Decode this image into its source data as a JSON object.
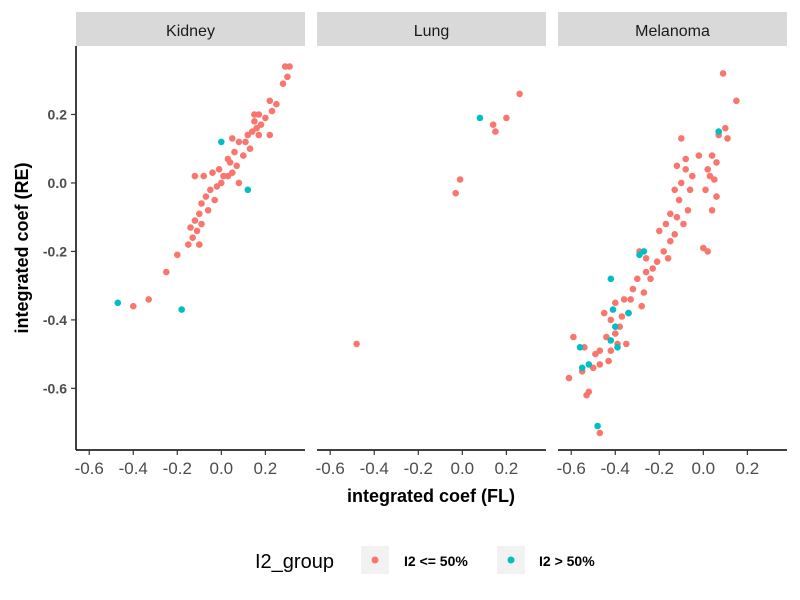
{
  "chart_data": {
    "type": "scatter",
    "xlabel": "integrated coef (FL)",
    "ylabel": "integrated coef (RE)",
    "xlim": [
      -0.66,
      0.38
    ],
    "ylim": [
      -0.78,
      0.4
    ],
    "x_ticks": [
      "-0.6",
      "-0.4",
      "-0.2",
      "0.0",
      "0.2"
    ],
    "x_tick_values": [
      -0.6,
      -0.4,
      -0.2,
      0.0,
      0.2
    ],
    "y_ticks": [
      "-0.6",
      "-0.4",
      "-0.2",
      "0.0",
      "0.2"
    ],
    "y_tick_values": [
      -0.6,
      -0.4,
      -0.2,
      0.0,
      0.2
    ],
    "grid": false,
    "legend_position": "bottom",
    "legend": {
      "title": "I2_group",
      "entries": [
        {
          "key": "low",
          "label": "I2 <= 50%",
          "color": "#F8766D"
        },
        {
          "key": "high",
          "label": "I2 > 50%",
          "color": "#00BFC4"
        }
      ]
    },
    "facets": [
      {
        "label": "Kidney",
        "points": [
          [
            0.29,
            0.34
          ],
          [
            0.31,
            0.34
          ],
          [
            0.3,
            0.31
          ],
          [
            0.28,
            0.29
          ],
          [
            0.22,
            0.24
          ],
          [
            0.25,
            0.23
          ],
          [
            0.23,
            0.21
          ],
          [
            0.17,
            0.2
          ],
          [
            0.15,
            0.2
          ],
          [
            0.2,
            0.19
          ],
          [
            0.18,
            0.17
          ],
          [
            0.16,
            0.16
          ],
          [
            0.14,
            0.15
          ],
          [
            0.12,
            0.14
          ],
          [
            0.17,
            0.14
          ],
          [
            0.22,
            0.14
          ],
          [
            0.11,
            0.12
          ],
          [
            0.08,
            0.12
          ],
          [
            0.05,
            0.13
          ],
          [
            0.13,
            0.1
          ],
          [
            0.1,
            0.08
          ],
          [
            0.06,
            0.09
          ],
          [
            0.03,
            0.07
          ],
          [
            0.07,
            0.05
          ],
          [
            0.05,
            0.03
          ],
          [
            0.03,
            0.02
          ],
          [
            0.01,
            0.02
          ],
          [
            0.0,
            0.0
          ],
          [
            -0.02,
            -0.01
          ],
          [
            -0.04,
            0.03
          ],
          [
            -0.08,
            0.02
          ],
          [
            -0.12,
            0.02
          ],
          [
            -0.05,
            -0.02
          ],
          [
            -0.07,
            -0.04
          ],
          [
            -0.09,
            -0.06
          ],
          [
            -0.03,
            -0.05
          ],
          [
            -0.06,
            -0.08
          ],
          [
            -0.1,
            -0.09
          ],
          [
            -0.12,
            -0.11
          ],
          [
            -0.14,
            -0.13
          ],
          [
            -0.11,
            -0.14
          ],
          [
            -0.13,
            -0.16
          ],
          [
            -0.09,
            -0.12
          ],
          [
            -0.15,
            -0.18
          ],
          [
            -0.1,
            -0.18
          ],
          [
            -0.2,
            -0.21
          ],
          [
            -0.25,
            -0.26
          ],
          [
            -0.33,
            -0.34
          ],
          [
            -0.4,
            -0.36
          ],
          [
            0.08,
            0.0
          ],
          [
            0.04,
            0.06
          ],
          [
            0.15,
            0.18
          ],
          [
            -0.01,
            0.04
          ],
          [
            0.0,
            0.12,
            "high"
          ],
          [
            0.12,
            -0.02,
            "high"
          ],
          [
            -0.47,
            -0.35,
            "high"
          ],
          [
            -0.18,
            -0.37,
            "high"
          ]
        ]
      },
      {
        "label": "Lung",
        "points": [
          [
            0.26,
            0.26
          ],
          [
            0.2,
            0.19
          ],
          [
            0.14,
            0.17
          ],
          [
            0.15,
            0.15
          ],
          [
            -0.01,
            0.01
          ],
          [
            -0.03,
            -0.03
          ],
          [
            -0.48,
            -0.47
          ],
          [
            0.08,
            0.19,
            "high"
          ]
        ]
      },
      {
        "label": "Melanoma",
        "points": [
          [
            0.09,
            0.32
          ],
          [
            0.15,
            0.24
          ],
          [
            0.1,
            0.16
          ],
          [
            0.11,
            0.13
          ],
          [
            0.04,
            0.08
          ],
          [
            0.06,
            0.06
          ],
          [
            0.03,
            0.02
          ],
          [
            0.05,
            0.01
          ],
          [
            0.02,
            0.04
          ],
          [
            0.01,
            -0.02
          ],
          [
            0.06,
            -0.04
          ],
          [
            0.04,
            -0.08
          ],
          [
            -0.1,
            0.13
          ],
          [
            -0.12,
            0.05
          ],
          [
            -0.08,
            0.04
          ],
          [
            -0.05,
            0.02
          ],
          [
            -0.1,
            0.0
          ],
          [
            -0.06,
            -0.02
          ],
          [
            -0.13,
            -0.02
          ],
          [
            -0.11,
            -0.05
          ],
          [
            -0.07,
            -0.08
          ],
          [
            -0.15,
            -0.09
          ],
          [
            -0.12,
            -0.1
          ],
          [
            -0.09,
            -0.12
          ],
          [
            -0.17,
            -0.12
          ],
          [
            -0.2,
            -0.14
          ],
          [
            -0.13,
            -0.15
          ],
          [
            -0.15,
            -0.17
          ],
          [
            -0.18,
            -0.2
          ],
          [
            -0.21,
            -0.23
          ],
          [
            -0.16,
            -0.22
          ],
          [
            -0.23,
            -0.25
          ],
          [
            -0.26,
            -0.22
          ],
          [
            -0.29,
            -0.2
          ],
          [
            -0.26,
            -0.26
          ],
          [
            -0.24,
            -0.28
          ],
          [
            -0.3,
            -0.28
          ],
          [
            -0.32,
            -0.31
          ],
          [
            -0.27,
            -0.32
          ],
          [
            -0.33,
            -0.34
          ],
          [
            -0.36,
            -0.34
          ],
          [
            -0.4,
            -0.35
          ],
          [
            -0.28,
            -0.36
          ],
          [
            -0.34,
            -0.38
          ],
          [
            -0.37,
            -0.39
          ],
          [
            -0.42,
            -0.4
          ],
          [
            -0.45,
            -0.38
          ],
          [
            -0.38,
            -0.42
          ],
          [
            -0.4,
            -0.44
          ],
          [
            -0.44,
            -0.45
          ],
          [
            -0.35,
            -0.47
          ],
          [
            -0.39,
            -0.47
          ],
          [
            -0.42,
            -0.49
          ],
          [
            -0.47,
            -0.49
          ],
          [
            -0.49,
            -0.5
          ],
          [
            -0.43,
            -0.52
          ],
          [
            -0.47,
            -0.53
          ],
          [
            -0.5,
            -0.54
          ],
          [
            -0.55,
            -0.55
          ],
          [
            -0.61,
            -0.57
          ],
          [
            -0.59,
            -0.45
          ],
          [
            -0.54,
            -0.48
          ],
          [
            -0.52,
            -0.61
          ],
          [
            -0.53,
            -0.62
          ],
          [
            -0.47,
            -0.73
          ],
          [
            0.02,
            -0.2
          ],
          [
            0.0,
            -0.19
          ],
          [
            -0.02,
            0.08
          ],
          [
            0.07,
            0.14
          ],
          [
            -0.08,
            0.07
          ],
          [
            0.07,
            0.15,
            "high"
          ],
          [
            -0.27,
            -0.2,
            "high"
          ],
          [
            -0.29,
            -0.21,
            "high"
          ],
          [
            -0.42,
            -0.28,
            "high"
          ],
          [
            -0.41,
            -0.37,
            "high"
          ],
          [
            -0.34,
            -0.38,
            "high"
          ],
          [
            -0.4,
            -0.42,
            "high"
          ],
          [
            -0.42,
            -0.46,
            "high"
          ],
          [
            -0.39,
            -0.48,
            "high"
          ],
          [
            -0.56,
            -0.48,
            "high"
          ],
          [
            -0.52,
            -0.53,
            "high"
          ],
          [
            -0.55,
            -0.54,
            "high"
          ],
          [
            -0.48,
            -0.71,
            "high"
          ]
        ]
      }
    ]
  }
}
